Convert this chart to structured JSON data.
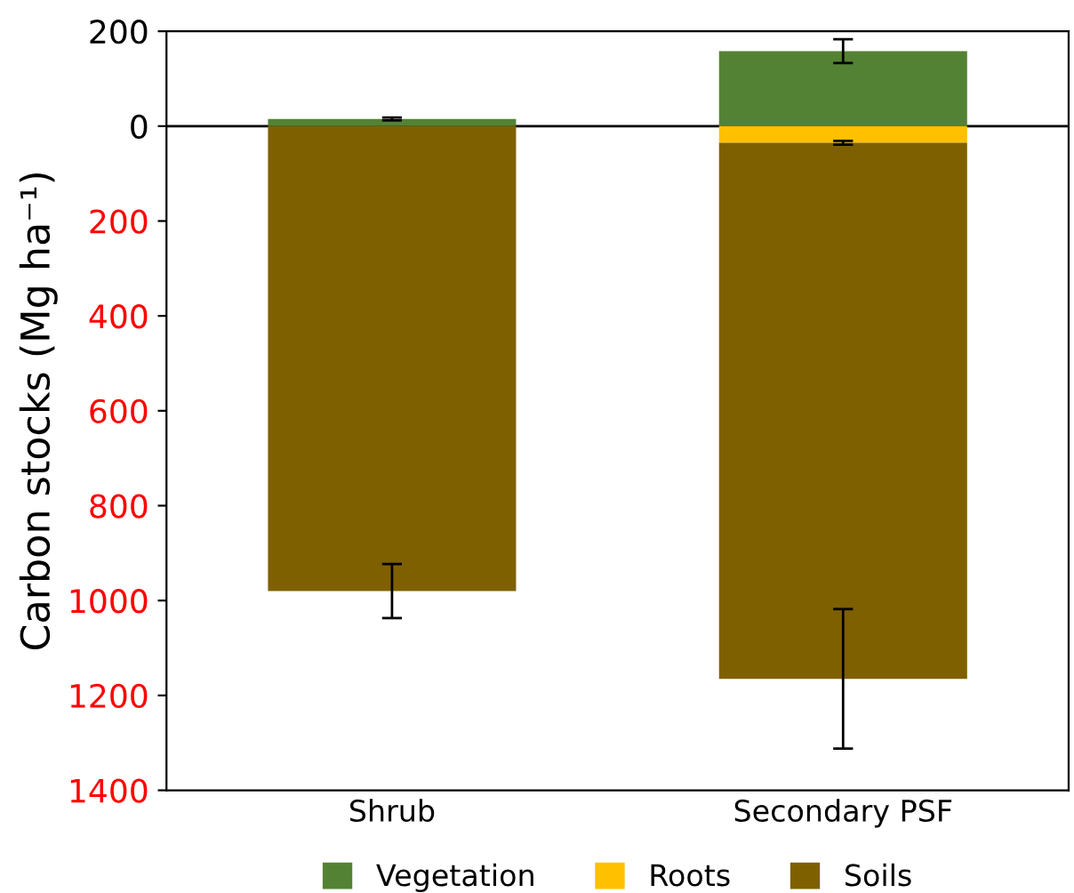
{
  "chart_data": {
    "type": "bar",
    "ylabel": "Carbon stocks (Mg ha⁻¹)",
    "categories": [
      "Shrub",
      "Secondary PSF"
    ],
    "stacked": true,
    "series": [
      {
        "name": "Vegetation",
        "color": "#548235",
        "values": [
          15,
          158
        ],
        "errors": [
          3,
          25
        ]
      },
      {
        "name": "Roots",
        "color": "#ffc000",
        "values": [
          0,
          -35
        ],
        "errors": [
          null,
          4
        ]
      },
      {
        "name": "Soils",
        "color": "#7f6000",
        "values": [
          -980,
          -1130
        ],
        "errors": [
          57,
          147
        ]
      }
    ],
    "ylim": [
      -1400,
      200
    ],
    "yticks": [
      200,
      0,
      {
        "value": -200,
        "label": "200"
      },
      {
        "value": -400,
        "label": "400"
      },
      {
        "value": -600,
        "label": "600"
      },
      {
        "value": -800,
        "label": "800"
      },
      {
        "value": -1000,
        "label": "1000"
      },
      {
        "value": -1200,
        "label": "1200"
      },
      {
        "value": -1400,
        "label": "1400"
      }
    ],
    "ref_lines": [
      {
        "axis": "y",
        "value": 0,
        "color": "#000000"
      }
    ],
    "grid": false,
    "legend": "bottom"
  }
}
